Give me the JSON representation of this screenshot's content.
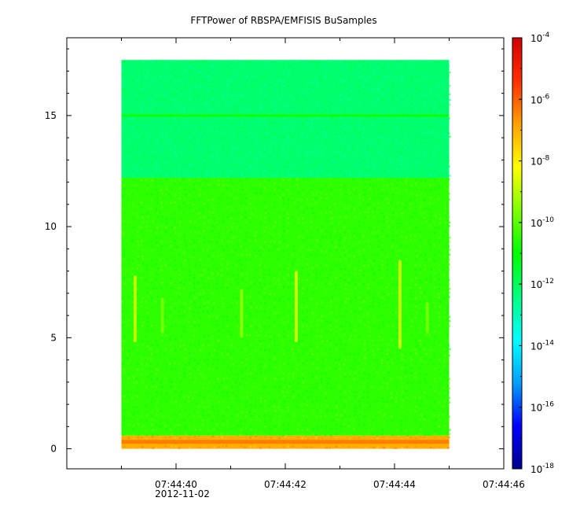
{
  "chart_data": {
    "type": "heatmap",
    "title": "FFTPower of RBSPA/EMFISIS  BuSamples",
    "xlabel": "",
    "ylabel": "",
    "x_ticks": [
      {
        "label": "07:44:40",
        "t": 40
      },
      {
        "label": "07:44:42",
        "t": 42
      },
      {
        "label": "07:44:44",
        "t": 44
      },
      {
        "label": "07:44:46",
        "t": 46
      }
    ],
    "x_date_label": "2012-11-02",
    "xlim_seconds": [
      38.0,
      46.0
    ],
    "data_time_range_seconds": [
      39.0,
      45.0
    ],
    "y_ticks": [
      0,
      5,
      10,
      15
    ],
    "ylim": [
      -0.9,
      18.5
    ],
    "data_y_range": [
      0,
      17.5
    ],
    "colorbar": {
      "scale": "log",
      "range": [
        1e-18,
        0.0001
      ],
      "ticks": [
        {
          "base": "10",
          "exp": "-4",
          "v": -4
        },
        {
          "base": "10",
          "exp": "-6",
          "v": -6
        },
        {
          "base": "10",
          "exp": "-8",
          "v": -8
        },
        {
          "base": "10",
          "exp": "-10",
          "v": -10
        },
        {
          "base": "10",
          "exp": "-12",
          "v": -12
        },
        {
          "base": "10",
          "exp": "-14",
          "v": -14
        },
        {
          "base": "10",
          "exp": "-16",
          "v": -16
        },
        {
          "base": "10",
          "exp": "-18",
          "v": -18
        }
      ],
      "colormap": [
        "#00008c",
        "#0000ff",
        "#00a0ff",
        "#00ffff",
        "#00ff80",
        "#00ff00",
        "#80ff00",
        "#ffff00",
        "#ffa000",
        "#ff3000",
        "#d00000"
      ]
    },
    "bands": [
      {
        "y_from": 0,
        "y_to": 0.6,
        "log_power": -7.0
      },
      {
        "y_from": 0.6,
        "y_to": 12.2,
        "log_power": -10.5
      },
      {
        "y_from": 12.2,
        "y_to": 17.5,
        "log_power": -12.2
      }
    ],
    "line_feature": {
      "y": 15.0,
      "log_power": -10.8
    },
    "bursts": [
      {
        "t": 39.25,
        "y_from": 4.8,
        "y_to": 7.8,
        "log_power": -8.6
      },
      {
        "t": 39.75,
        "y_from": 5.2,
        "y_to": 6.8,
        "log_power": -9.6
      },
      {
        "t": 41.2,
        "y_from": 5.0,
        "y_to": 7.2,
        "log_power": -9.3
      },
      {
        "t": 42.2,
        "y_from": 4.8,
        "y_to": 8.0,
        "log_power": -8.4
      },
      {
        "t": 44.1,
        "y_from": 4.5,
        "y_to": 8.5,
        "log_power": -8.5
      },
      {
        "t": 44.6,
        "y_from": 5.2,
        "y_to": 6.6,
        "log_power": -9.6
      }
    ]
  }
}
